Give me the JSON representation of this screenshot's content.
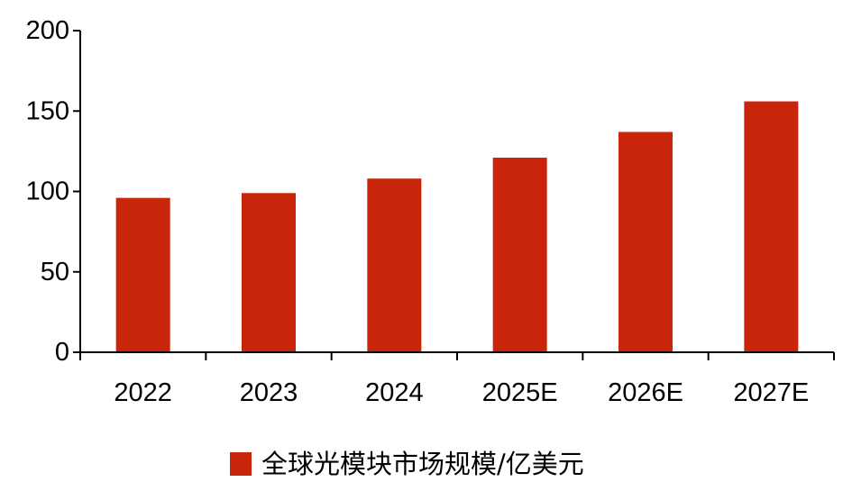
{
  "colors": {
    "bar": "#C8250A",
    "axis": "#000000",
    "text": "#000000",
    "background": "#FFFFFF"
  },
  "chart_data": {
    "type": "bar",
    "categories": [
      "2022",
      "2023",
      "2024",
      "2025E",
      "2026E",
      "2027E"
    ],
    "series": [
      {
        "name": "全球光模块市场规模/亿美元",
        "values": [
          96,
          99,
          108,
          121,
          137,
          156
        ]
      }
    ],
    "ylim": [
      0,
      200
    ],
    "yticks": [
      0,
      50,
      100,
      150,
      200
    ],
    "grid": false,
    "legend_position": "bottom"
  }
}
